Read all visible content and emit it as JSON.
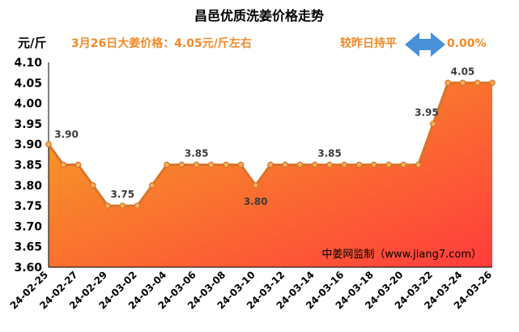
{
  "header": {
    "title": "昌邑优质洗姜价格走势",
    "unit_label": "元/斤",
    "price_note": "3月26日大姜价格：4.05元/斤左右",
    "compare_label": "较昨日持平",
    "compare_pct": "0.00%",
    "source": "中姜网监制（www.jiang7.com）"
  },
  "colors": {
    "accent": "#f08a2a",
    "compare_text": "#f08a2a",
    "arrow": "#4a90d9",
    "line": "#d9742a",
    "marker_fill": "#f6b15a",
    "area_top": "#ff3c3c",
    "area_bottom": "#f5a623"
  },
  "chart_data": {
    "type": "area",
    "x": [
      "24-02-25",
      "24-02-26",
      "24-02-27",
      "24-02-28",
      "24-02-29",
      "24-03-01",
      "24-03-02",
      "24-03-03",
      "24-03-04",
      "24-03-05",
      "24-03-06",
      "24-03-07",
      "24-03-08",
      "24-03-09",
      "24-03-10",
      "24-03-11",
      "24-03-12",
      "24-03-13",
      "24-03-14",
      "24-03-15",
      "24-03-16",
      "24-03-17",
      "24-03-18",
      "24-03-19",
      "24-03-20",
      "24-03-21",
      "24-03-22",
      "24-03-23",
      "24-03-24",
      "24-03-25",
      "24-03-26"
    ],
    "values": [
      3.9,
      3.85,
      3.85,
      3.8,
      3.75,
      3.75,
      3.75,
      3.8,
      3.85,
      3.85,
      3.85,
      3.85,
      3.85,
      3.85,
      3.8,
      3.85,
      3.85,
      3.85,
      3.85,
      3.85,
      3.85,
      3.85,
      3.85,
      3.85,
      3.85,
      3.85,
      3.95,
      4.05,
      4.05,
      4.05,
      4.05
    ],
    "x_tick_labels": [
      "24-02-25",
      "24-02-27",
      "24-02-29",
      "24-03-02",
      "24-03-04",
      "24-03-06",
      "24-03-08",
      "24-03-10",
      "24-03-12",
      "24-03-14",
      "24-03-16",
      "24-03-18",
      "24-03-20",
      "24-03-22",
      "24-03-24",
      "24-03-26"
    ],
    "y_ticks": [
      "3.60",
      "3.65",
      "3.70",
      "3.75",
      "3.80",
      "3.85",
      "3.90",
      "3.95",
      "4.00",
      "4.05",
      "4.10"
    ],
    "ylim": [
      3.6,
      4.1
    ],
    "data_labels": [
      {
        "index": 0,
        "text": "3.90"
      },
      {
        "index": 5,
        "text": "3.75"
      },
      {
        "index": 10,
        "text": "3.85"
      },
      {
        "index": 14,
        "text": "3.80"
      },
      {
        "index": 19,
        "text": "3.85"
      },
      {
        "index": 26,
        "text": "3.95"
      },
      {
        "index": 28,
        "text": "4.05"
      }
    ],
    "grid": false
  }
}
